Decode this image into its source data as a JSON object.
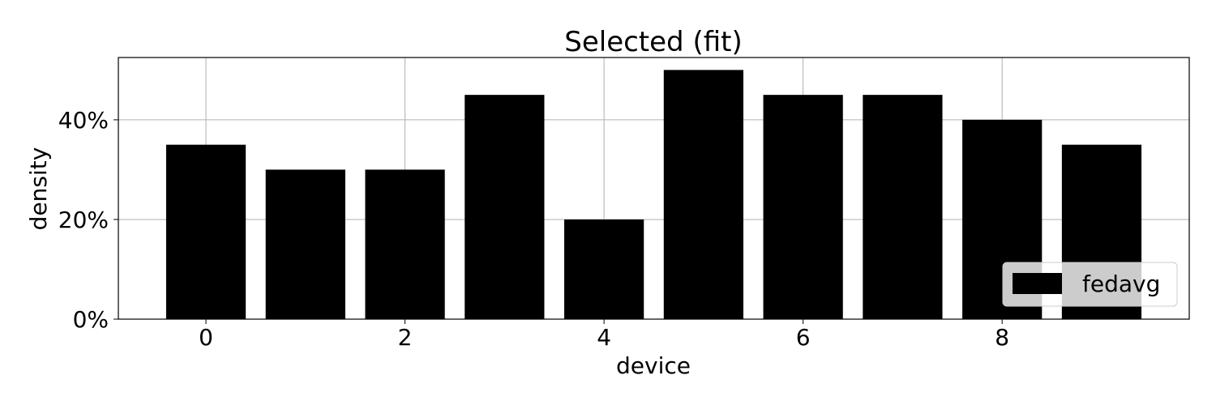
{
  "chart_data": {
    "type": "bar",
    "title": "Selected (fit)",
    "xlabel": "device",
    "ylabel": "density",
    "categories": [
      0,
      1,
      2,
      3,
      4,
      5,
      6,
      7,
      8,
      9
    ],
    "series": [
      {
        "name": "fedavg",
        "values": [
          0.35,
          0.3,
          0.3,
          0.45,
          0.2,
          0.5,
          0.45,
          0.45,
          0.4,
          0.35
        ],
        "color": "#000000"
      }
    ],
    "xlim": [
      -0.88,
      9.88
    ],
    "ylim": [
      0,
      0.525
    ],
    "xticks": [
      0,
      2,
      4,
      6,
      8
    ],
    "xtick_labels": [
      "0",
      "2",
      "4",
      "6",
      "8"
    ],
    "yticks": [
      0,
      0.2,
      0.4
    ],
    "ytick_labels": [
      "0%",
      "20%",
      "40%"
    ],
    "grid": true,
    "legend": {
      "placement": "lower-right"
    }
  }
}
